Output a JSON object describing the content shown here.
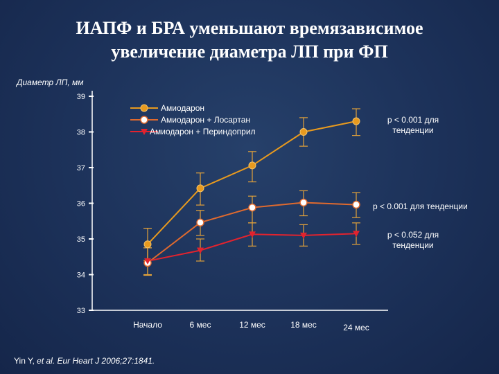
{
  "title": {
    "line1": "ИАПФ и БРА уменьшают времязависимое",
    "line2": "увеличение диаметра ЛП при ФП"
  },
  "citation": {
    "authors": "Yin Y,",
    "rest": "et al. Eur Heart J 2006;27:1841."
  },
  "colors": {
    "background": "#1c3159",
    "axis": "#ffffff",
    "amiodarone": "#e89a1e",
    "losartan": "#e06a2e",
    "perindopril": "#e2232e",
    "errorbar": "#e3a23a"
  },
  "chart_data": {
    "type": "line",
    "title": "",
    "ylabel": "Диаметр ЛП, мм",
    "xlabel": "",
    "ylim": [
      33,
      39
    ],
    "yticks": [
      "33",
      "34",
      "35",
      "36",
      "37",
      "38",
      "39"
    ],
    "categories": [
      "Начало",
      "6 мес",
      "12 мес",
      "18 мес",
      "24 мес"
    ],
    "legend_position": "top-left",
    "series": [
      {
        "name": "Амиодарон",
        "marker": "circle-filled",
        "values": [
          34.85,
          36.42,
          37.06,
          38.0,
          38.3
        ],
        "error_low": [
          34.4,
          35.95,
          36.6,
          37.6,
          37.9
        ],
        "error_high": [
          35.3,
          36.85,
          37.45,
          38.4,
          38.65
        ],
        "annotation": "p < 0.001 для тенденции"
      },
      {
        "name": "Амиодарон + Лосартан",
        "marker": "circle-open",
        "values": [
          34.33,
          35.46,
          35.88,
          36.02,
          35.96
        ],
        "error_low": [
          34.0,
          35.1,
          35.45,
          35.65,
          35.6
        ],
        "error_high": [
          34.75,
          35.8,
          36.2,
          36.35,
          36.3
        ],
        "annotation": "p < 0.001 для тенденции"
      },
      {
        "name": "Амиодарон + Периндоприл",
        "marker": "triangle-down",
        "values": [
          34.38,
          34.68,
          35.13,
          35.1,
          35.15
        ],
        "error_low": [
          33.98,
          34.38,
          34.8,
          34.8,
          34.85
        ],
        "error_high": [
          34.75,
          35.0,
          35.45,
          35.4,
          35.45
        ],
        "annotation": "p < 0.052 для тенденции"
      }
    ]
  }
}
